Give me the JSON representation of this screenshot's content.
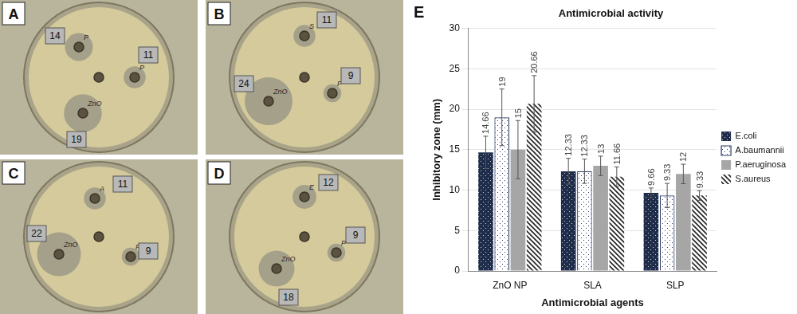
{
  "chart_data": {
    "type": "bar",
    "panel_label": "E",
    "title": "Antimicrobial activity",
    "x_label": "Antimicrobial agents",
    "y_label": "Inhibitory zone (mm)",
    "categories": [
      "ZnO NP",
      "SLA",
      "SLP"
    ],
    "series": [
      {
        "name": "E.coli",
        "color": "#1f2d4a",
        "values": [
          14.66,
          12.33,
          9.66
        ],
        "errors": [
          2.0,
          1.6,
          0.6
        ]
      },
      {
        "name": "A.baumannii",
        "color": "#2b3a67",
        "values": [
          19,
          12.33,
          9.33
        ],
        "errors": [
          3.5,
          1.5,
          1.5
        ]
      },
      {
        "name": "P.aeruginosa",
        "color": "#a6a6a6",
        "values": [
          15,
          13,
          12
        ],
        "errors": [
          3.6,
          1.2,
          1.2
        ]
      },
      {
        "name": "S.aureus",
        "color": "#222222",
        "values": [
          20.66,
          11.66,
          9.33
        ],
        "errors": [
          3.5,
          1.2,
          0.6
        ]
      }
    ],
    "ylim": [
      0,
      30
    ],
    "yticks": [
      0,
      5,
      10,
      15,
      20,
      25,
      30
    ],
    "grid": true,
    "legend": "right",
    "data_labels": true
  },
  "plates": [
    {
      "label": "A",
      "wells": [
        {
          "mark": "P",
          "zone_mm": 14
        },
        {
          "mark": "P",
          "zone_mm": 11
        },
        {
          "mark": "ZnO",
          "zone_mm": 19
        }
      ]
    },
    {
      "label": "B",
      "wells": [
        {
          "mark": "S",
          "zone_mm": 11
        },
        {
          "mark": "ZnO",
          "zone_mm": 24
        },
        {
          "mark": "P",
          "zone_mm": 9
        }
      ]
    },
    {
      "label": "C",
      "wells": [
        {
          "mark": "A",
          "zone_mm": 11
        },
        {
          "mark": "ZnO",
          "zone_mm": 22
        },
        {
          "mark": "P",
          "zone_mm": 9
        }
      ]
    },
    {
      "label": "D",
      "wells": [
        {
          "mark": "E",
          "zone_mm": 12
        },
        {
          "mark": "ZnO",
          "zone_mm": 18
        },
        {
          "mark": "P",
          "zone_mm": 9
        }
      ]
    }
  ]
}
